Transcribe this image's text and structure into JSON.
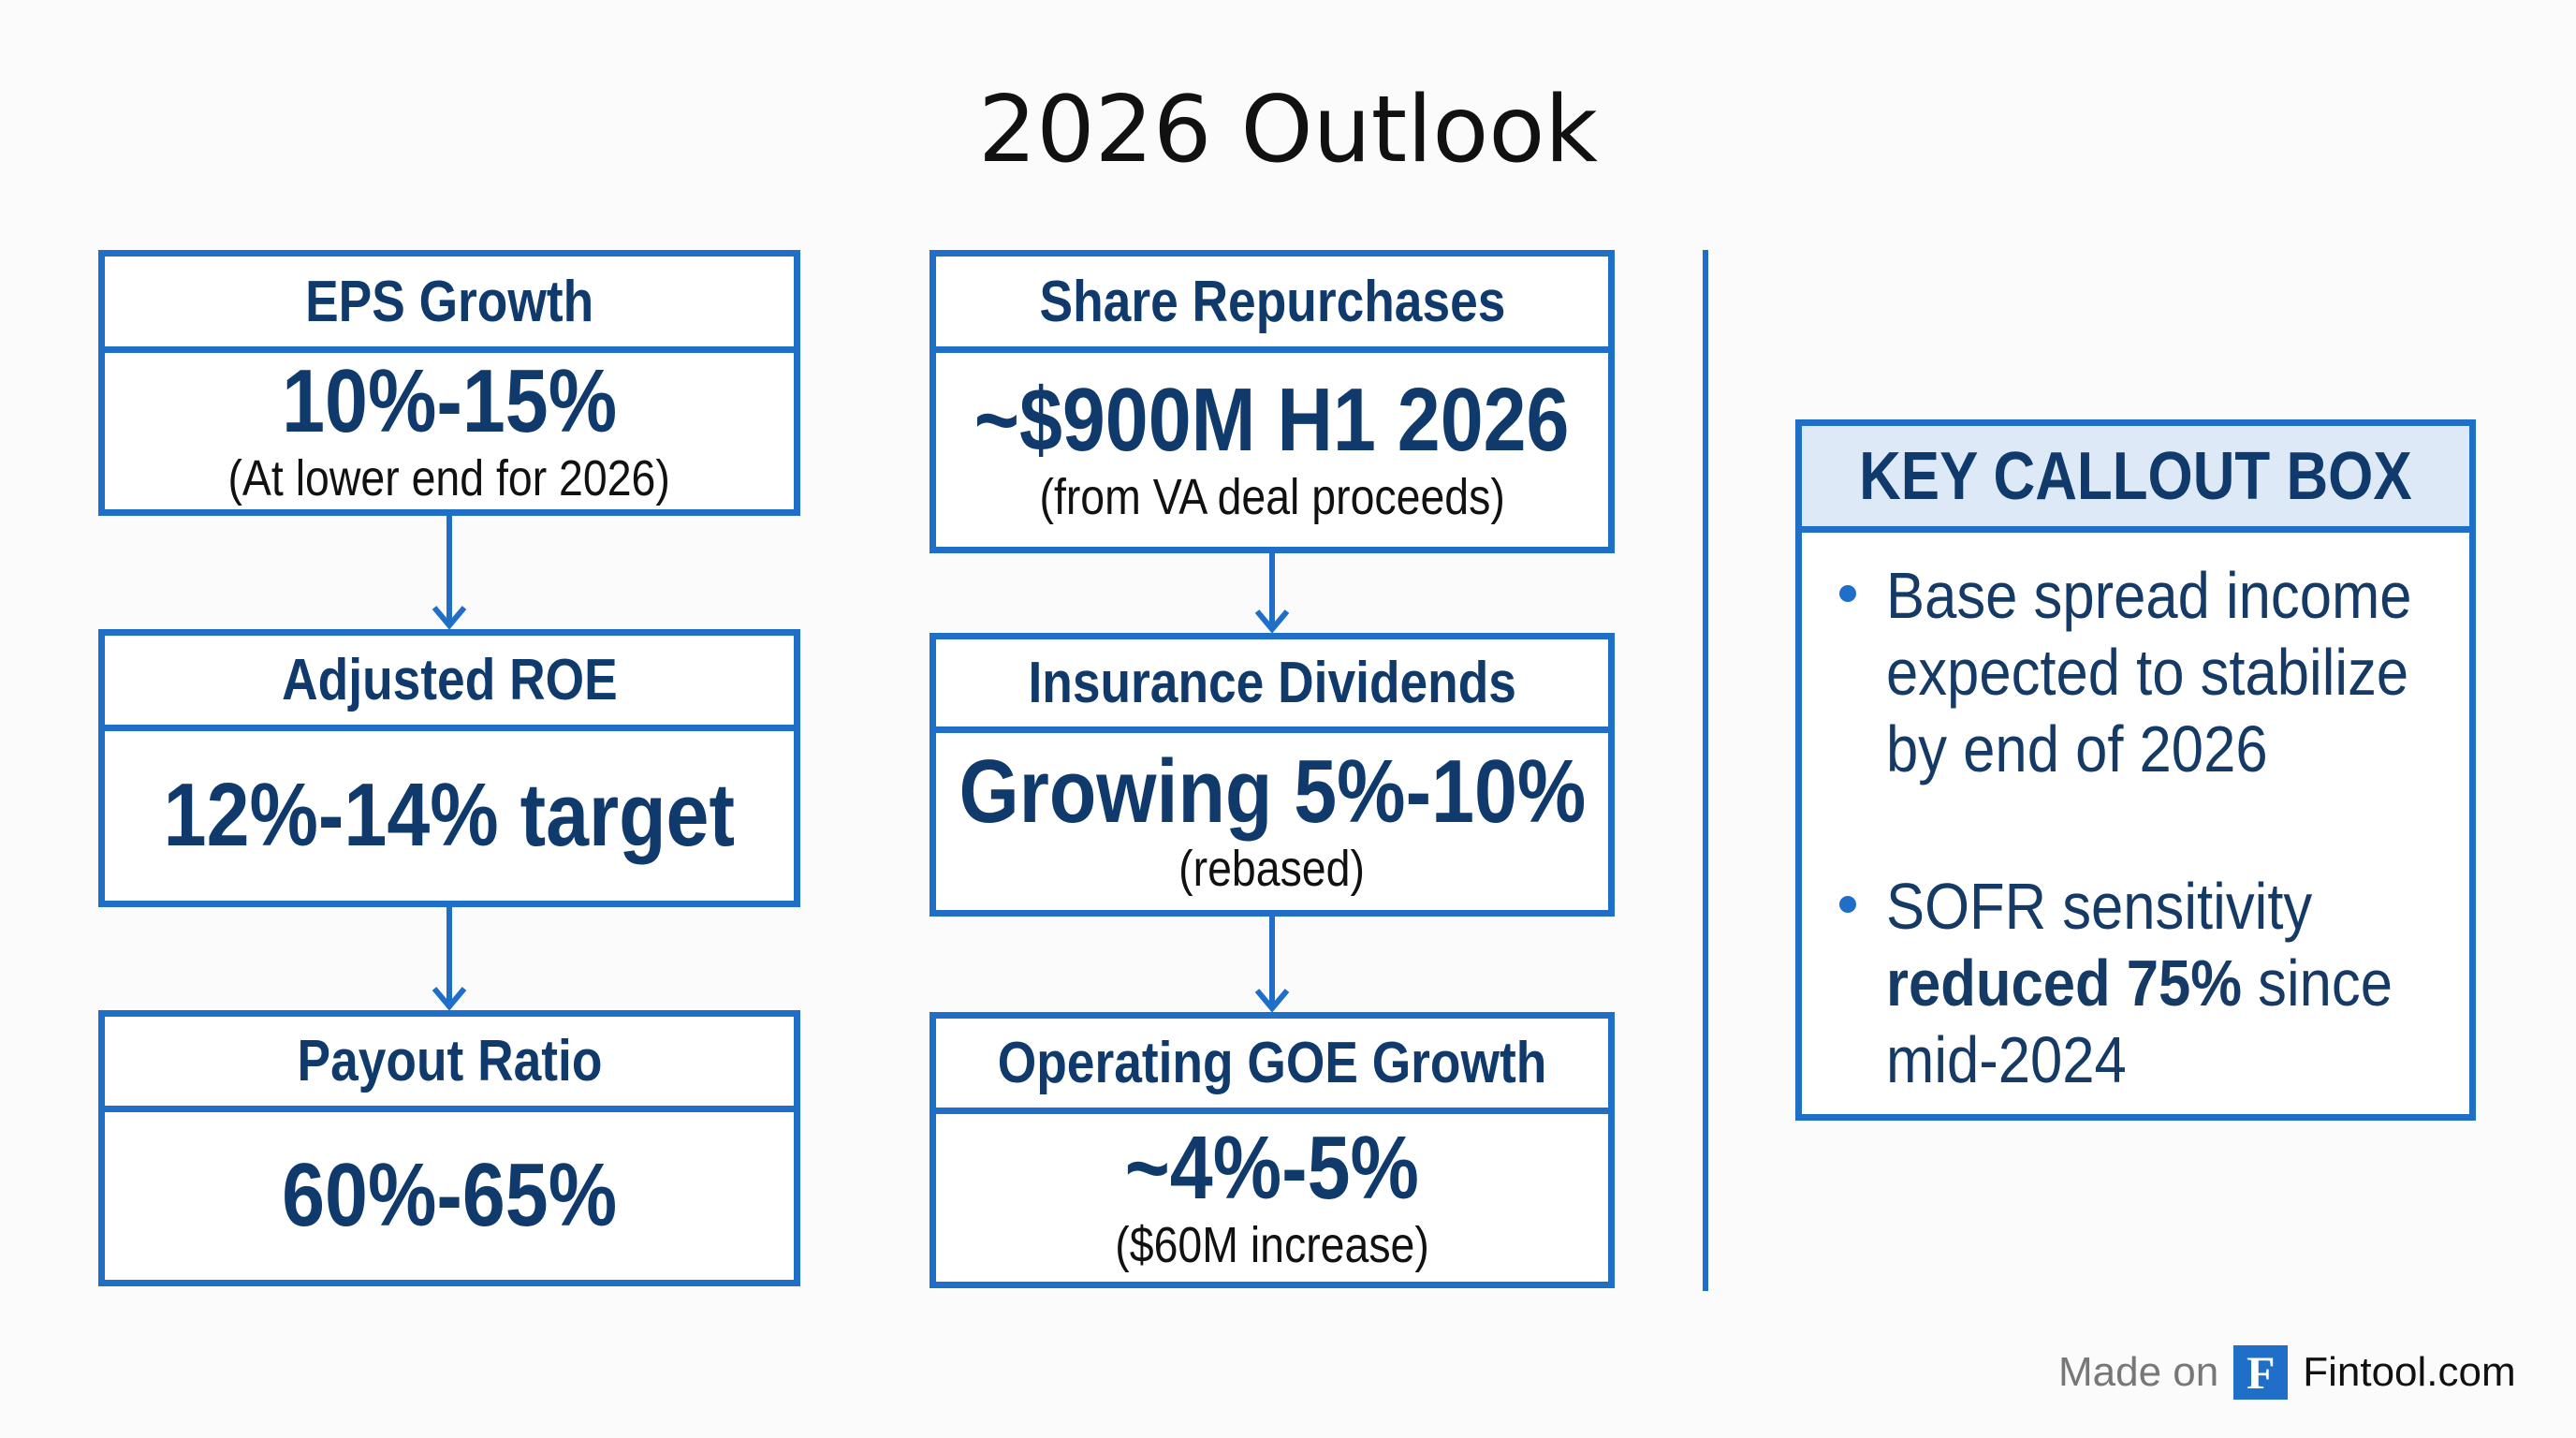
{
  "title": "2026 Outlook",
  "left_column": [
    {
      "label": "EPS Growth",
      "value": "10%-15%",
      "note": "(At lower end for 2026)"
    },
    {
      "label": "Adjusted ROE",
      "value": "12%-14% target",
      "note": ""
    },
    {
      "label": "Payout Ratio",
      "value": "60%-65%",
      "note": ""
    }
  ],
  "middle_column": [
    {
      "label": "Share Repurchases",
      "value": "~$900M H1 2026",
      "note": "(from VA deal proceeds)"
    },
    {
      "label": "Insurance Dividends",
      "value": "Growing 5%-10%",
      "note": "(rebased)"
    },
    {
      "label": "Operating GOE Growth",
      "value": "~4%-5%",
      "note": "($60M increase)"
    }
  ],
  "callout": {
    "title": "KEY CALLOUT BOX",
    "bullets": [
      {
        "text": "Base spread income expected to stabilize by end of 2026"
      },
      {
        "bold": "reduced 75%",
        "pre": "SOFR sensitivity ",
        "post": " since mid-2024"
      }
    ]
  },
  "footer": {
    "made_on": "Made on",
    "logo_letter": "F",
    "brand": "Fintool.com"
  },
  "colors": {
    "border": "#1f6fc8",
    "text": "#0f3a6b",
    "callout_header_bg": "#dde9f7"
  }
}
